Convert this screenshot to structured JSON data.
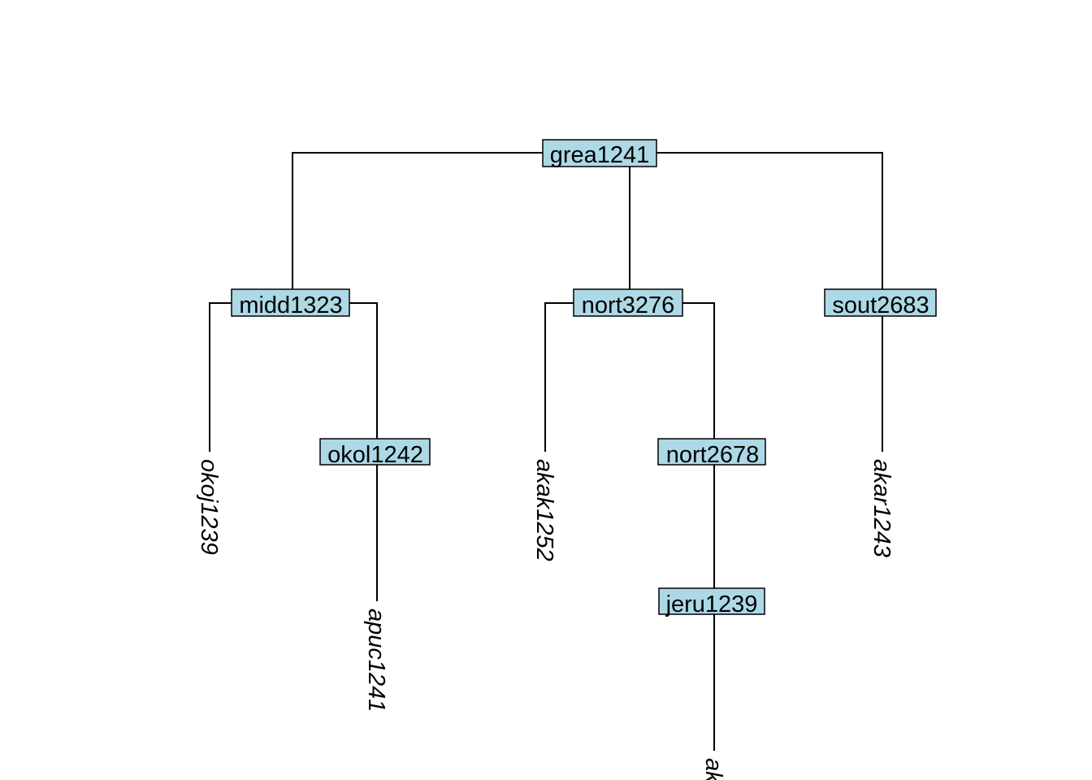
{
  "tree": {
    "node_fill": "#ADD8E6",
    "internal_nodes": {
      "root": "grea1241",
      "midd": "midd1323",
      "nort": "nort3276",
      "sout": "sout2683",
      "okol": "okol1242",
      "nort2": "nort2678",
      "jeru": "jeru1239"
    },
    "leaves": {
      "okoj": "okoj1239",
      "apuc": "apuc1241",
      "akak": "akak1252",
      "akar": "akar1243",
      "cut": "ak"
    },
    "edges": [
      [
        "grea1241",
        "midd1323"
      ],
      [
        "grea1241",
        "nort3276"
      ],
      [
        "grea1241",
        "sout2683"
      ],
      [
        "midd1323",
        "okoj1239"
      ],
      [
        "midd1323",
        "okol1242"
      ],
      [
        "okol1242",
        "apuc1241"
      ],
      [
        "nort3276",
        "akak1252"
      ],
      [
        "nort3276",
        "nort2678"
      ],
      [
        "nort2678",
        "jeru1239"
      ],
      [
        "sout2683",
        "akar1243"
      ]
    ]
  }
}
